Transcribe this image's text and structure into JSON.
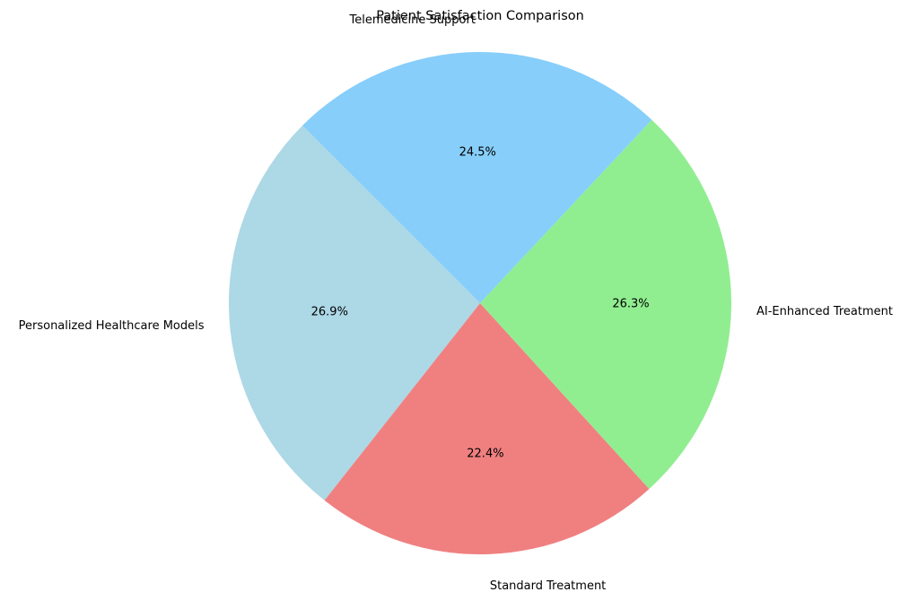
{
  "chart_data": {
    "type": "pie",
    "title": "Patient Satisfaction Comparison",
    "start_angle_deg": 135,
    "direction": "counterclockwise",
    "slices": [
      {
        "label": "Personalized Healthcare Models",
        "value": 26.9,
        "percent_label": "26.9%",
        "color": "#add8e6"
      },
      {
        "label": "Standard Treatment",
        "value": 22.4,
        "percent_label": "22.4%",
        "color": "#f08080"
      },
      {
        "label": "AI-Enhanced Treatment",
        "value": 26.3,
        "percent_label": "26.3%",
        "color": "#90ee90"
      },
      {
        "label": "Telemedicine Support",
        "value": 24.5,
        "percent_label": "24.5%",
        "color": "#87cefa"
      }
    ]
  }
}
